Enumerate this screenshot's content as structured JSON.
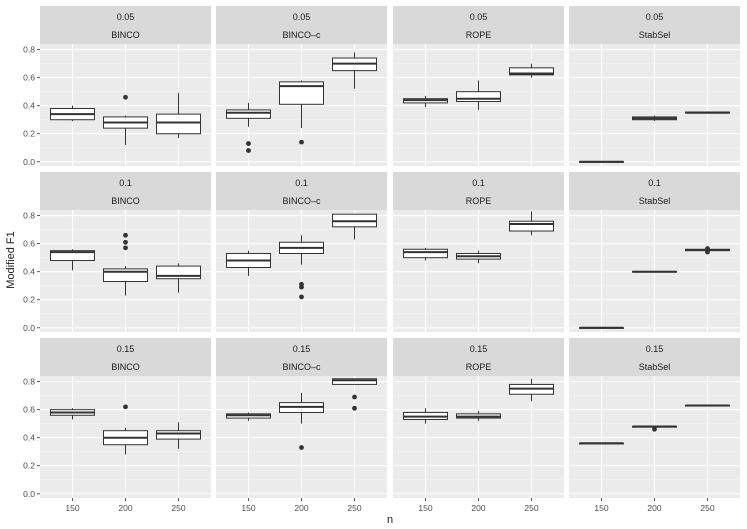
{
  "chart_data": {
    "type": "boxplot",
    "title": "",
    "xlabel": "n",
    "ylabel": "Modified F1",
    "ylim": [
      -0.03,
      0.84
    ],
    "yticks": [
      0.0,
      0.2,
      0.4,
      0.6,
      0.8
    ],
    "ytick_labels": [
      "0.0",
      "0.2",
      "0.4",
      "0.6",
      "0.8"
    ],
    "categories": [
      "150",
      "200",
      "250"
    ],
    "columns": [
      "BINCO",
      "BINCO–c",
      "ROPE",
      "StabSel"
    ],
    "rows": [
      "0.05",
      "0.1",
      "0.15"
    ],
    "grid": true,
    "panels": [
      {
        "row": "0.05",
        "method": "BINCO",
        "boxes": [
          {
            "n": "150",
            "min": 0.29,
            "q1": 0.3,
            "median": 0.34,
            "q3": 0.38,
            "max": 0.4,
            "outliers": []
          },
          {
            "n": "200",
            "min": 0.12,
            "q1": 0.24,
            "median": 0.28,
            "q3": 0.32,
            "max": 0.33,
            "outliers": [
              0.46
            ]
          },
          {
            "n": "250",
            "min": 0.17,
            "q1": 0.2,
            "median": 0.28,
            "q3": 0.34,
            "max": 0.49,
            "outliers": []
          }
        ]
      },
      {
        "row": "0.05",
        "method": "BINCO–c",
        "boxes": [
          {
            "n": "150",
            "min": 0.25,
            "q1": 0.31,
            "median": 0.35,
            "q3": 0.37,
            "max": 0.42,
            "outliers": [
              0.13,
              0.08
            ]
          },
          {
            "n": "200",
            "min": 0.24,
            "q1": 0.41,
            "median": 0.54,
            "q3": 0.57,
            "max": 0.58,
            "outliers": [
              0.14
            ]
          },
          {
            "n": "250",
            "min": 0.52,
            "q1": 0.65,
            "median": 0.7,
            "q3": 0.74,
            "max": 0.78,
            "outliers": []
          }
        ]
      },
      {
        "row": "0.05",
        "method": "ROPE",
        "boxes": [
          {
            "n": "150",
            "min": 0.39,
            "q1": 0.42,
            "median": 0.44,
            "q3": 0.45,
            "max": 0.47,
            "outliers": []
          },
          {
            "n": "200",
            "min": 0.37,
            "q1": 0.43,
            "median": 0.45,
            "q3": 0.5,
            "max": 0.58,
            "outliers": []
          },
          {
            "n": "250",
            "min": 0.6,
            "q1": 0.62,
            "median": 0.63,
            "q3": 0.67,
            "max": 0.7,
            "outliers": []
          }
        ]
      },
      {
        "row": "0.05",
        "method": "StabSel",
        "boxes": [
          {
            "n": "150",
            "min": 0.0,
            "q1": 0.0,
            "median": 0.0,
            "q3": 0.0,
            "max": 0.0,
            "outliers": []
          },
          {
            "n": "200",
            "min": 0.29,
            "q1": 0.3,
            "median": 0.31,
            "q3": 0.32,
            "max": 0.33,
            "outliers": []
          },
          {
            "n": "250",
            "min": 0.35,
            "q1": 0.35,
            "median": 0.35,
            "q3": 0.355,
            "max": 0.36,
            "outliers": []
          }
        ]
      },
      {
        "row": "0.1",
        "method": "BINCO",
        "boxes": [
          {
            "n": "150",
            "min": 0.41,
            "q1": 0.48,
            "median": 0.54,
            "q3": 0.55,
            "max": 0.56,
            "outliers": []
          },
          {
            "n": "200",
            "min": 0.23,
            "q1": 0.33,
            "median": 0.4,
            "q3": 0.42,
            "max": 0.44,
            "outliers": [
              0.57,
              0.61,
              0.66
            ]
          },
          {
            "n": "250",
            "min": 0.25,
            "q1": 0.35,
            "median": 0.37,
            "q3": 0.44,
            "max": 0.46,
            "outliers": []
          }
        ]
      },
      {
        "row": "0.1",
        "method": "BINCO–c",
        "boxes": [
          {
            "n": "150",
            "min": 0.37,
            "q1": 0.43,
            "median": 0.48,
            "q3": 0.53,
            "max": 0.55,
            "outliers": []
          },
          {
            "n": "200",
            "min": 0.45,
            "q1": 0.53,
            "median": 0.57,
            "q3": 0.61,
            "max": 0.66,
            "outliers": [
              0.31,
              0.29,
              0.22
            ]
          },
          {
            "n": "250",
            "min": 0.63,
            "q1": 0.72,
            "median": 0.76,
            "q3": 0.81,
            "max": 0.81,
            "outliers": []
          }
        ]
      },
      {
        "row": "0.1",
        "method": "ROPE",
        "boxes": [
          {
            "n": "150",
            "min": 0.48,
            "q1": 0.5,
            "median": 0.54,
            "q3": 0.56,
            "max": 0.57,
            "outliers": []
          },
          {
            "n": "200",
            "min": 0.46,
            "q1": 0.49,
            "median": 0.51,
            "q3": 0.53,
            "max": 0.55,
            "outliers": []
          },
          {
            "n": "250",
            "min": 0.66,
            "q1": 0.69,
            "median": 0.74,
            "q3": 0.76,
            "max": 0.83,
            "outliers": []
          }
        ]
      },
      {
        "row": "0.1",
        "method": "StabSel",
        "boxes": [
          {
            "n": "150",
            "min": 0.0,
            "q1": 0.0,
            "median": 0.0,
            "q3": 0.0,
            "max": 0.0,
            "outliers": []
          },
          {
            "n": "200",
            "min": 0.395,
            "q1": 0.397,
            "median": 0.4,
            "q3": 0.402,
            "max": 0.405,
            "outliers": []
          },
          {
            "n": "250",
            "min": 0.55,
            "q1": 0.55,
            "median": 0.555,
            "q3": 0.56,
            "max": 0.56,
            "outliers": [
              0.54,
              0.565
            ]
          }
        ]
      },
      {
        "row": "0.15",
        "method": "BINCO",
        "boxes": [
          {
            "n": "150",
            "min": 0.53,
            "q1": 0.56,
            "median": 0.58,
            "q3": 0.6,
            "max": 0.61,
            "outliers": []
          },
          {
            "n": "200",
            "min": 0.28,
            "q1": 0.35,
            "median": 0.4,
            "q3": 0.45,
            "max": 0.47,
            "outliers": [
              0.62
            ]
          },
          {
            "n": "250",
            "min": 0.32,
            "q1": 0.39,
            "median": 0.43,
            "q3": 0.45,
            "max": 0.51,
            "outliers": []
          }
        ]
      },
      {
        "row": "0.15",
        "method": "BINCO–c",
        "boxes": [
          {
            "n": "150",
            "min": 0.52,
            "q1": 0.54,
            "median": 0.56,
            "q3": 0.57,
            "max": 0.58,
            "outliers": []
          },
          {
            "n": "200",
            "min": 0.5,
            "q1": 0.58,
            "median": 0.62,
            "q3": 0.65,
            "max": 0.72,
            "outliers": [
              0.33
            ]
          },
          {
            "n": "250",
            "min": 0.78,
            "q1": 0.78,
            "median": 0.81,
            "q3": 0.82,
            "max": 0.82,
            "outliers": [
              0.69,
              0.61
            ]
          }
        ]
      },
      {
        "row": "0.15",
        "method": "ROPE",
        "boxes": [
          {
            "n": "150",
            "min": 0.5,
            "q1": 0.53,
            "median": 0.55,
            "q3": 0.58,
            "max": 0.61,
            "outliers": []
          },
          {
            "n": "200",
            "min": 0.52,
            "q1": 0.54,
            "median": 0.55,
            "q3": 0.57,
            "max": 0.59,
            "outliers": []
          },
          {
            "n": "250",
            "min": 0.66,
            "q1": 0.71,
            "median": 0.75,
            "q3": 0.78,
            "max": 0.82,
            "outliers": []
          }
        ]
      },
      {
        "row": "0.15",
        "method": "StabSel",
        "boxes": [
          {
            "n": "150",
            "min": 0.36,
            "q1": 0.36,
            "median": 0.36,
            "q3": 0.36,
            "max": 0.36,
            "outliers": []
          },
          {
            "n": "200",
            "min": 0.47,
            "q1": 0.475,
            "median": 0.48,
            "q3": 0.48,
            "max": 0.48,
            "outliers": [
              0.46
            ]
          },
          {
            "n": "250",
            "min": 0.63,
            "q1": 0.63,
            "median": 0.63,
            "q3": 0.63,
            "max": 0.63,
            "outliers": []
          }
        ]
      }
    ]
  },
  "colors": {
    "panel_bg": "#ebebeb",
    "strip_bg": "#d9d9d9",
    "grid_major": "#ffffff",
    "grid_minor": "#f4f4f4",
    "box_stroke": "#333333",
    "box_fill": "#ffffff",
    "text": "#1a1a1a",
    "tick_text": "#4d4d4d"
  }
}
